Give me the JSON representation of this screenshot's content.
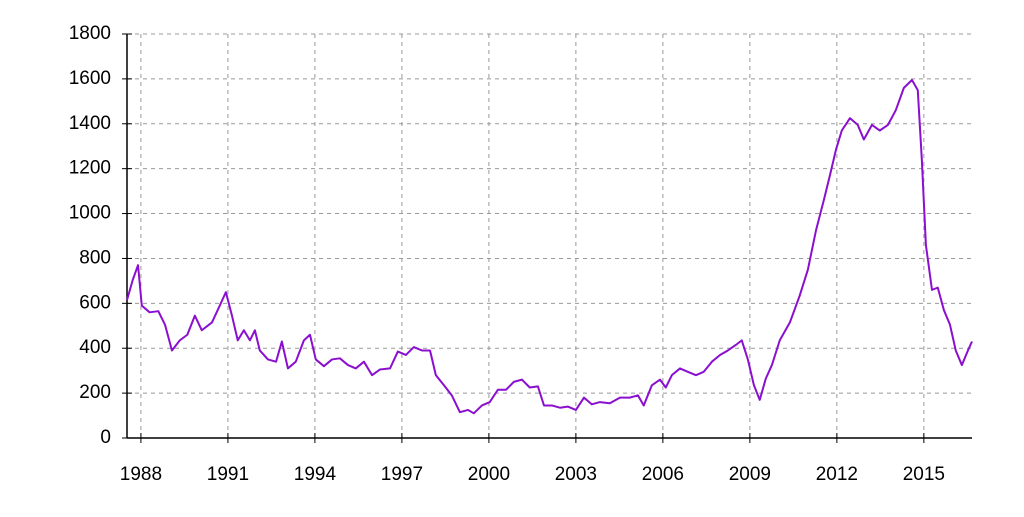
{
  "chart_data": {
    "type": "line",
    "color": "#8b0fcf",
    "grid": true,
    "x": [
      1987.52,
      1987.72,
      1987.9,
      1988.03,
      1988.3,
      1988.6,
      1988.83,
      1989.07,
      1989.34,
      1989.6,
      1989.86,
      1990.1,
      1990.45,
      1990.72,
      1990.93,
      1991.14,
      1991.34,
      1991.55,
      1991.76,
      1991.93,
      1992.1,
      1992.38,
      1992.66,
      1992.86,
      1993.07,
      1993.34,
      1993.62,
      1993.83,
      1994.03,
      1994.31,
      1994.59,
      1994.86,
      1995.14,
      1995.41,
      1995.69,
      1995.97,
      1996.24,
      1996.59,
      1996.86,
      1997.14,
      1997.41,
      1997.69,
      1997.97,
      1998.17,
      1998.45,
      1998.72,
      1999.0,
      1999.28,
      1999.48,
      1999.76,
      2000.03,
      2000.31,
      2000.59,
      2000.86,
      2001.14,
      2001.41,
      2001.69,
      2001.9,
      2002.17,
      2002.45,
      2002.72,
      2003.0,
      2003.28,
      2003.55,
      2003.83,
      2004.17,
      2004.52,
      2004.86,
      2005.14,
      2005.34,
      2005.62,
      2005.9,
      2006.1,
      2006.31,
      2006.59,
      2006.86,
      2007.14,
      2007.41,
      2007.69,
      2007.97,
      2008.24,
      2008.52,
      2008.72,
      2008.93,
      2009.14,
      2009.34,
      2009.55,
      2009.76,
      2010.03,
      2010.38,
      2010.72,
      2011.0,
      2011.28,
      2011.55,
      2011.76,
      2011.97,
      2012.17,
      2012.45,
      2012.72,
      2012.93,
      2013.21,
      2013.48,
      2013.76,
      2014.03,
      2014.31,
      2014.59,
      2014.79,
      2014.93,
      2015.07,
      2015.28,
      2015.48,
      2015.69,
      2015.9,
      2016.1,
      2016.31,
      2016.52,
      2016.66
    ],
    "values": [
      615,
      705,
      770,
      590,
      560,
      565,
      505,
      390,
      435,
      460,
      545,
      480,
      515,
      590,
      650,
      545,
      435,
      480,
      435,
      480,
      390,
      350,
      340,
      430,
      310,
      340,
      435,
      460,
      350,
      320,
      350,
      355,
      325,
      310,
      340,
      280,
      305,
      310,
      385,
      370,
      405,
      390,
      390,
      280,
      235,
      190,
      115,
      125,
      110,
      145,
      160,
      215,
      215,
      250,
      260,
      225,
      230,
      145,
      145,
      135,
      140,
      125,
      180,
      150,
      160,
      155,
      180,
      180,
      190,
      145,
      235,
      260,
      225,
      280,
      310,
      295,
      280,
      295,
      340,
      370,
      390,
      415,
      435,
      350,
      235,
      170,
      265,
      325,
      435,
      515,
      635,
      750,
      925,
      1060,
      1170,
      1285,
      1370,
      1425,
      1395,
      1330,
      1395,
      1370,
      1395,
      1460,
      1560,
      1595,
      1550,
      1240,
      860,
      660,
      670,
      570,
      505,
      390,
      325,
      390,
      430
    ],
    "xlim": [
      1987.52,
      2016.66
    ],
    "xticks": [
      1988,
      1991,
      1994,
      1997,
      2000,
      2003,
      2006,
      2009,
      2012,
      2015
    ],
    "ylim": [
      0,
      1800
    ],
    "yticks": [
      0,
      200,
      400,
      600,
      800,
      1000,
      1200,
      1400,
      1600,
      1800
    ]
  }
}
